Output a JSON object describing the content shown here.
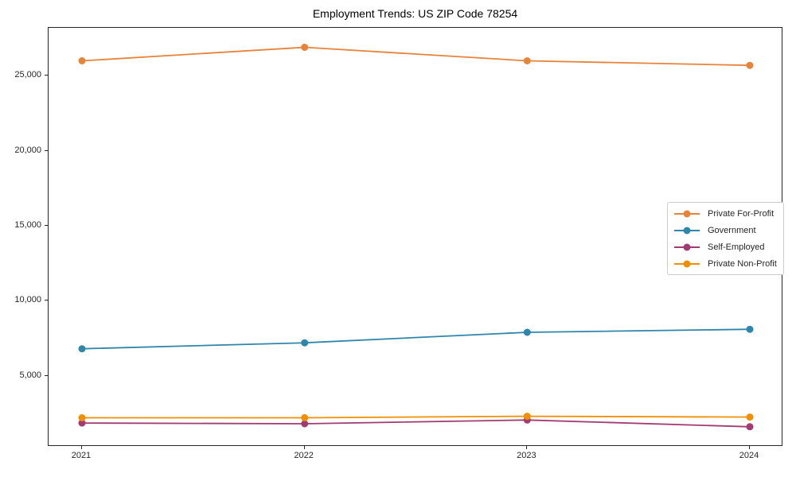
{
  "chart_data": {
    "type": "line",
    "title": "Employment Trends: US ZIP Code 78254",
    "x": [
      "2021",
      "2022",
      "2023",
      "2024"
    ],
    "series": [
      {
        "name": "Private For-Profit",
        "color": "#E8833A",
        "values": [
          26000,
          26900,
          26000,
          25700
        ]
      },
      {
        "name": "Government",
        "color": "#2E86AB",
        "values": [
          6800,
          7200,
          7900,
          8100
        ]
      },
      {
        "name": "Self-Employed",
        "color": "#A23B72",
        "values": [
          1850,
          1800,
          2050,
          1600
        ]
      },
      {
        "name": "Private Non-Profit",
        "color": "#F18F01",
        "values": [
          2200,
          2200,
          2300,
          2250
        ]
      }
    ],
    "xlabel": "",
    "ylabel": "",
    "ylim": [
      265,
      28200
    ],
    "yticks": [
      5000,
      10000,
      15000,
      20000,
      25000
    ],
    "ytick_labels": [
      "5,000",
      "10,000",
      "15,000",
      "20,000",
      "25,000"
    ],
    "grid": false,
    "legend_position": "center-right"
  },
  "colors": {
    "background": "#ffffff",
    "spine": "#262626",
    "tick_label": "#262626",
    "legend_border": "#cccccc"
  }
}
